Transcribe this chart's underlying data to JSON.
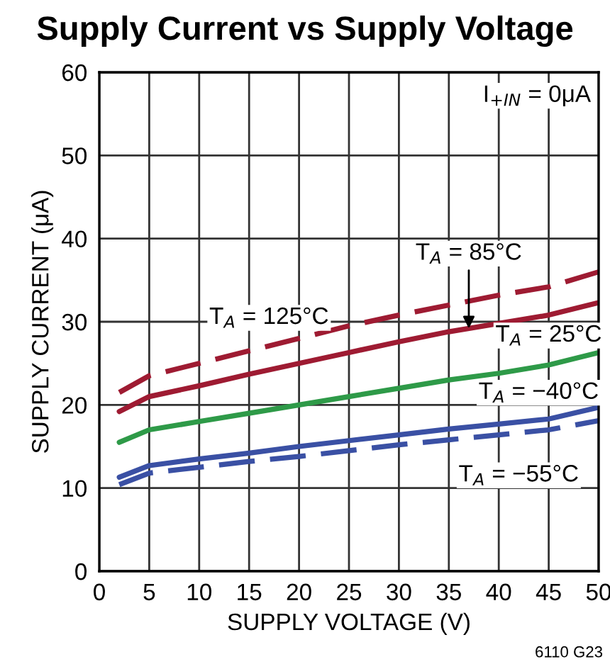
{
  "chart_data": {
    "type": "line",
    "title": "Supply Current vs Supply Voltage",
    "xlabel": "SUPPLY VOLTAGE (V)",
    "ylabel": "SUPPLY CURRENT (μA)",
    "x": [
      2,
      5,
      10,
      15,
      20,
      25,
      30,
      35,
      40,
      45,
      50
    ],
    "series": [
      {
        "color": "#9e1b32",
        "line_style": "dashed",
        "values": [
          21.5,
          23.5,
          25,
          26.5,
          28,
          29.5,
          30.8,
          32,
          33.2,
          34.2,
          36
        ]
      },
      {
        "color": "#9e1b32",
        "line_style": "solid",
        "values": [
          19.2,
          21,
          22.3,
          23.7,
          25,
          26.3,
          27.6,
          28.8,
          29.8,
          30.8,
          32.3
        ]
      },
      {
        "color": "#2e9a48",
        "line_style": "solid",
        "values": [
          15.5,
          17,
          18,
          19,
          20,
          21,
          22,
          23,
          23.8,
          24.8,
          26.3
        ]
      },
      {
        "color": "#3a50a4",
        "line_style": "solid",
        "values": [
          11.3,
          12.7,
          13.5,
          14.2,
          15,
          15.7,
          16.4,
          17.1,
          17.7,
          18.3,
          19.7
        ]
      },
      {
        "color": "#3a50a4",
        "line_style": "dashed",
        "values": [
          10.4,
          11.8,
          12.5,
          13.2,
          13.8,
          14.5,
          15.2,
          15.8,
          16.4,
          17,
          18.1
        ]
      }
    ],
    "xlim": [
      0,
      50
    ],
    "xticks": [
      0,
      5,
      10,
      15,
      20,
      25,
      30,
      35,
      40,
      45,
      50
    ],
    "ylim": [
      0,
      60
    ],
    "yticks": [
      0,
      10,
      20,
      30,
      40,
      50,
      60
    ],
    "grid": true,
    "legend": false,
    "annotations": [
      {
        "text": "T$_{A}$ = 125°C",
        "x": 17,
        "y": 27.1
      },
      {
        "text": "T$_{A}$ = 85°C",
        "x": 37,
        "y": 29.2
      },
      {
        "text": "T$_{A}$ = 25°C",
        "x": 45,
        "y": 24.8
      },
      {
        "text": "T$_{A}$ = −40°C",
        "x": 44,
        "y": 18.1
      },
      {
        "text": "T$_{A}$ = −55°C",
        "x": 42,
        "y": 16.6
      },
      "I$_{+IN}$ = 0μA",
      "6110 G23"
    ]
  }
}
